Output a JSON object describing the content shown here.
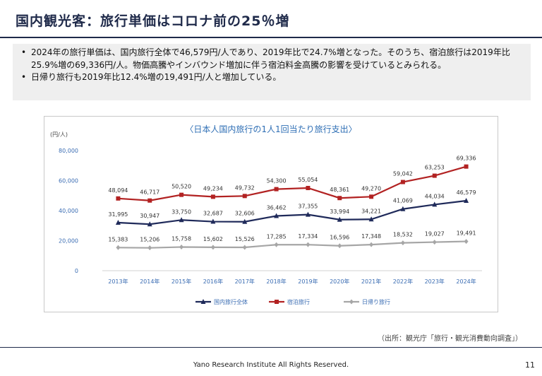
{
  "slide": {
    "title": "国内観光客：旅行単価はコロナ前の25％増",
    "bullets": [
      "2024年の旅行単価は、国内旅行全体で46,579円/人であり、2019年比で24.7%増となった。そのうち、宿泊旅行は2019年比25.9%増の69,336円/人。物価高騰やインバウンド増加に伴う宿泊料金高騰の影響を受けているとみられる。",
      "日帰り旅行も2019年比12.4%増の19,491円/人と増加している。"
    ],
    "source": "（出所：観光庁「旅行・観光消費動向調査」）",
    "footer": "Yano Research Institute All Rights Reserved.",
    "page_number": "11"
  },
  "chart_data": {
    "type": "line",
    "title": "〈日本人国内旅行の1人1回当たり旅行支出〉",
    "unit_label": "(円/人)",
    "categories": [
      "2013年",
      "2014年",
      "2015年",
      "2016年",
      "2017年",
      "2018年",
      "2019年",
      "2020年",
      "2021年",
      "2022年",
      "2023年",
      "2024年"
    ],
    "ylim": [
      0,
      80000
    ],
    "yticks": [
      "0",
      "20,000",
      "40,000",
      "60,000",
      "80,000"
    ],
    "legend_position": "bottom",
    "grid": false,
    "series": [
      {
        "name": "国内旅行全体",
        "color": "#1f2a5a",
        "marker": "triangle",
        "values": [
          31995,
          30947,
          33750,
          32687,
          32606,
          36462,
          37355,
          33994,
          34221,
          41069,
          44034,
          46579
        ],
        "labels": [
          "31,995",
          "30,947",
          "33,750",
          "32,687",
          "32,606",
          "36,462",
          "37,355",
          "33,994",
          "34,221",
          "41,069",
          "44,034",
          "46,579"
        ]
      },
      {
        "name": "宿泊旅行",
        "color": "#b22222",
        "marker": "square",
        "values": [
          48094,
          46717,
          50520,
          49234,
          49732,
          54300,
          55054,
          48361,
          49270,
          59042,
          63253,
          69336
        ],
        "labels": [
          "48,094",
          "46,717",
          "50,520",
          "49,234",
          "49,732",
          "54,300",
          "55,054",
          "48,361",
          "49,270",
          "59,042",
          "63,253",
          "69,336"
        ]
      },
      {
        "name": "日帰り旅行",
        "color": "#a6a6a6",
        "marker": "diamond",
        "values": [
          15383,
          15206,
          15758,
          15602,
          15526,
          17285,
          17334,
          16596,
          17348,
          18532,
          19027,
          19491
        ],
        "labels": [
          "15,383",
          "15,206",
          "15,758",
          "15,602",
          "15,526",
          "17,285",
          "17,334",
          "16,596",
          "17,348",
          "18,532",
          "19,027",
          "19,491"
        ]
      }
    ]
  }
}
